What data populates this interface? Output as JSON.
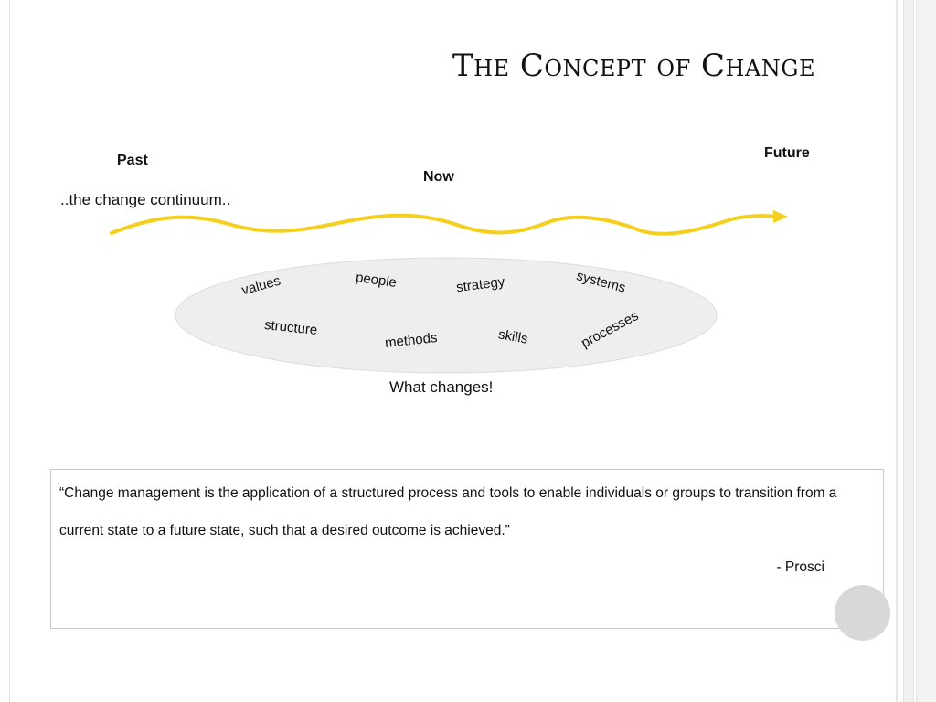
{
  "slide": {
    "title": "The Concept of Change",
    "continuum": {
      "past_label": "Past",
      "now_label": "Now",
      "future_label": "Future",
      "caption": "..the change continuum..",
      "arrow_color": "#f5cf1d"
    },
    "changes": {
      "ellipse_color": "#eeeeee",
      "words": [
        "values",
        "people",
        "strategy",
        "systems",
        "structure",
        "methods",
        "skills",
        "processes"
      ],
      "caption": "What changes!"
    },
    "quote": {
      "line1": "“Change management is the application of a structured process and tools to enable individuals or groups to transition from a",
      "line2": "current state to a future state, such that a desired outcome is achieved.”",
      "attribution": "- Prosci"
    }
  }
}
